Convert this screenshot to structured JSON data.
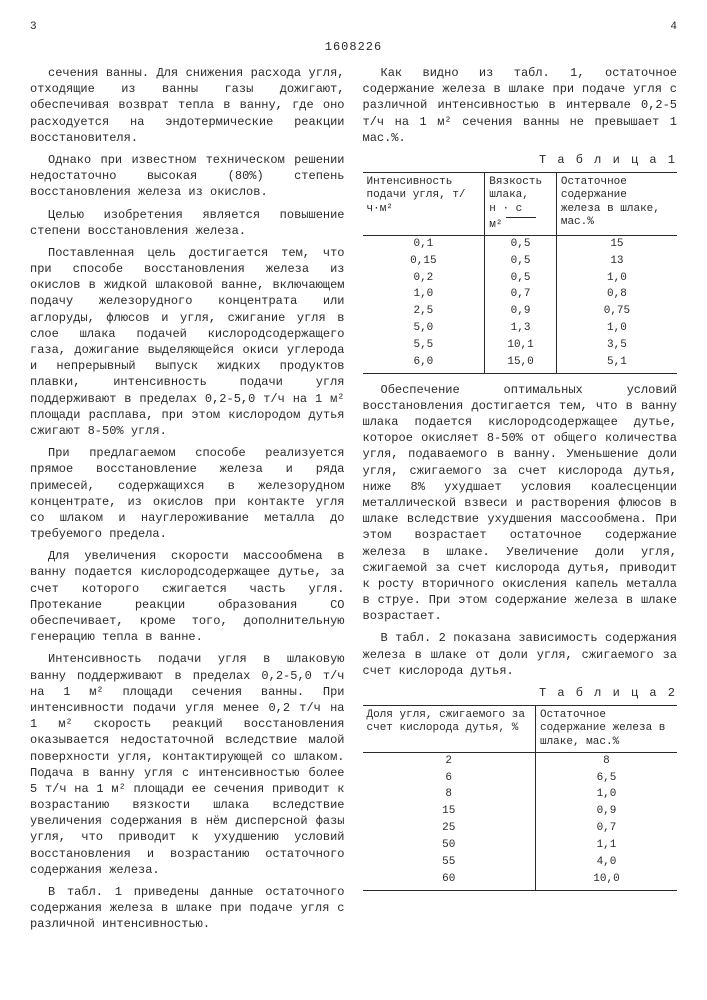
{
  "doc_number": "1608226",
  "page_left": "3",
  "page_right": "4",
  "left_col": {
    "p1": "сечения ванны. Для снижения расхода угля, отходящие из ванны газы дожигают, обеспечивая возврат тепла в ванну, где оно расходуется на эндотермические реакции восстановителя.",
    "p2": "Однако при известном техническом решении недостаточно высокая (80%) степень восстановления железа из окислов.",
    "p3": "Целью изобретения является повышение степени восстановления железа.",
    "p4": "Поставленная цель достигается тем, что при способе восстановления железа из окислов в жидкой шлаковой ванне, включающем подачу железорудного концентрата или аглоруды, флюсов и угля, сжигание угля в слое шлака подачей кислородсодержащего газа, дожигание выделяющейся окиси углерода и непрерывный выпуск жидких продуктов плавки, интенсивность подачи угля поддерживают в пределах 0,2-5,0 т/ч на 1 м² площади расплава, при этом кислородом дутья сжигают 8-50% угля.",
    "p5": "При предлагаемом способе реализуется прямое восстановление железа и ряда примесей, содержащихся в железорудном концентрате, из окислов при контакте угля со шлаком и науглероживание металла до требуемого предела.",
    "p6": "Для увеличения скорости массообмена в ванну подается кислородсодержащее дутье, за счет которого сжигается часть угля. Протекание реакции образования CO обеспечивает, кроме того, дополнительную генерацию тепла в ванне.",
    "p7": "Интенсивность подачи угля в шлаковую ванну поддерживают в пределах 0,2-5,0 т/ч на 1 м² площади сечения ванны. При интенсивности подачи угля менее 0,2 т/ч на 1 м² скорость реакций восстановления оказывается недостаточной вследствие малой поверхности угля, контактирующей со шлаком. Подача в ванну угля с интенсивностью более 5 т/ч на 1 м² площади ее сечения приводит к возрастанию вязкости шлака вследствие увеличения содержания в нём дисперсной фазы угля, что приводит к ухудшению условий восстановления и возрастанию остаточного содержания железа.",
    "p8": "В табл. 1 приведены данные остаточного содержания железа в шлаке при подаче угля с различной интенсивностью."
  },
  "right_col": {
    "p1": "Как видно из табл. 1, остаточное содержание железа в шлаке при подаче угля с различной интенсивностью в интервале 0,2-5 т/ч на 1 м² сечения ванны не превышает 1 мас.%.",
    "table1_title": "Т а б л и ц а  1",
    "table1": {
      "headers": [
        "Интенсивность подачи угля, т/ч·м²",
        "Вязкость шлака,",
        "Остаточное содержание железа в шлаке, мас.%"
      ],
      "frac_top": "н · с",
      "frac_bot": "м²",
      "rows": [
        [
          "0,1",
          "0,5",
          "15"
        ],
        [
          "0,15",
          "0,5",
          "13"
        ],
        [
          "0,2",
          "0,5",
          "1,0"
        ],
        [
          "1,0",
          "0,7",
          "0,8"
        ],
        [
          "2,5",
          "0,9",
          "0,75"
        ],
        [
          "5,0",
          "1,3",
          "1,0"
        ],
        [
          "5,5",
          "10,1",
          "3,5"
        ],
        [
          "6,0",
          "15,0",
          "5,1"
        ]
      ]
    },
    "p2": "Обеспечение оптимальных условий восстановления достигается тем, что в ванну шлака подается кислородсодержащее дутье, которое окисляет 8-50% от общего количества угля, подаваемого в ванну. Уменьшение доли угля, сжигаемого за счет кислорода дутья, ниже 8% ухудшает условия коалесценции металлической взвеси и растворения флюсов в шлаке вследствие ухудшения массообмена. При этом возрастает остаточное содержание железа в шлаке. Увеличение доли угля, сжигаемой за счет кислорода дутья, приводит к росту вторичного окисления капель металла в струе. При этом содержание железа в шлаке возрастает.",
    "p3": "В табл. 2 показана зависимость содержания железа в шлаке от доли угля, сжигаемого за счет кислорода дутья.",
    "table2_title": "Т а б л и ц а  2",
    "table2": {
      "headers": [
        "Доля угля, сжигаемого за счет кислорода дутья, %",
        "Остаточное содержание железа в шлаке, мас.%"
      ],
      "rows": [
        [
          "2",
          "8"
        ],
        [
          "6",
          "6,5"
        ],
        [
          "8",
          "1,0"
        ],
        [
          "15",
          "0,9"
        ],
        [
          "25",
          "0,7"
        ],
        [
          "50",
          "1,1"
        ],
        [
          "55",
          "4,0"
        ],
        [
          "60",
          "10,0"
        ]
      ]
    }
  },
  "line_marks": [
    "5",
    "10",
    "15",
    "20",
    "25",
    "30",
    "35",
    "40",
    "45",
    "50",
    "55"
  ]
}
